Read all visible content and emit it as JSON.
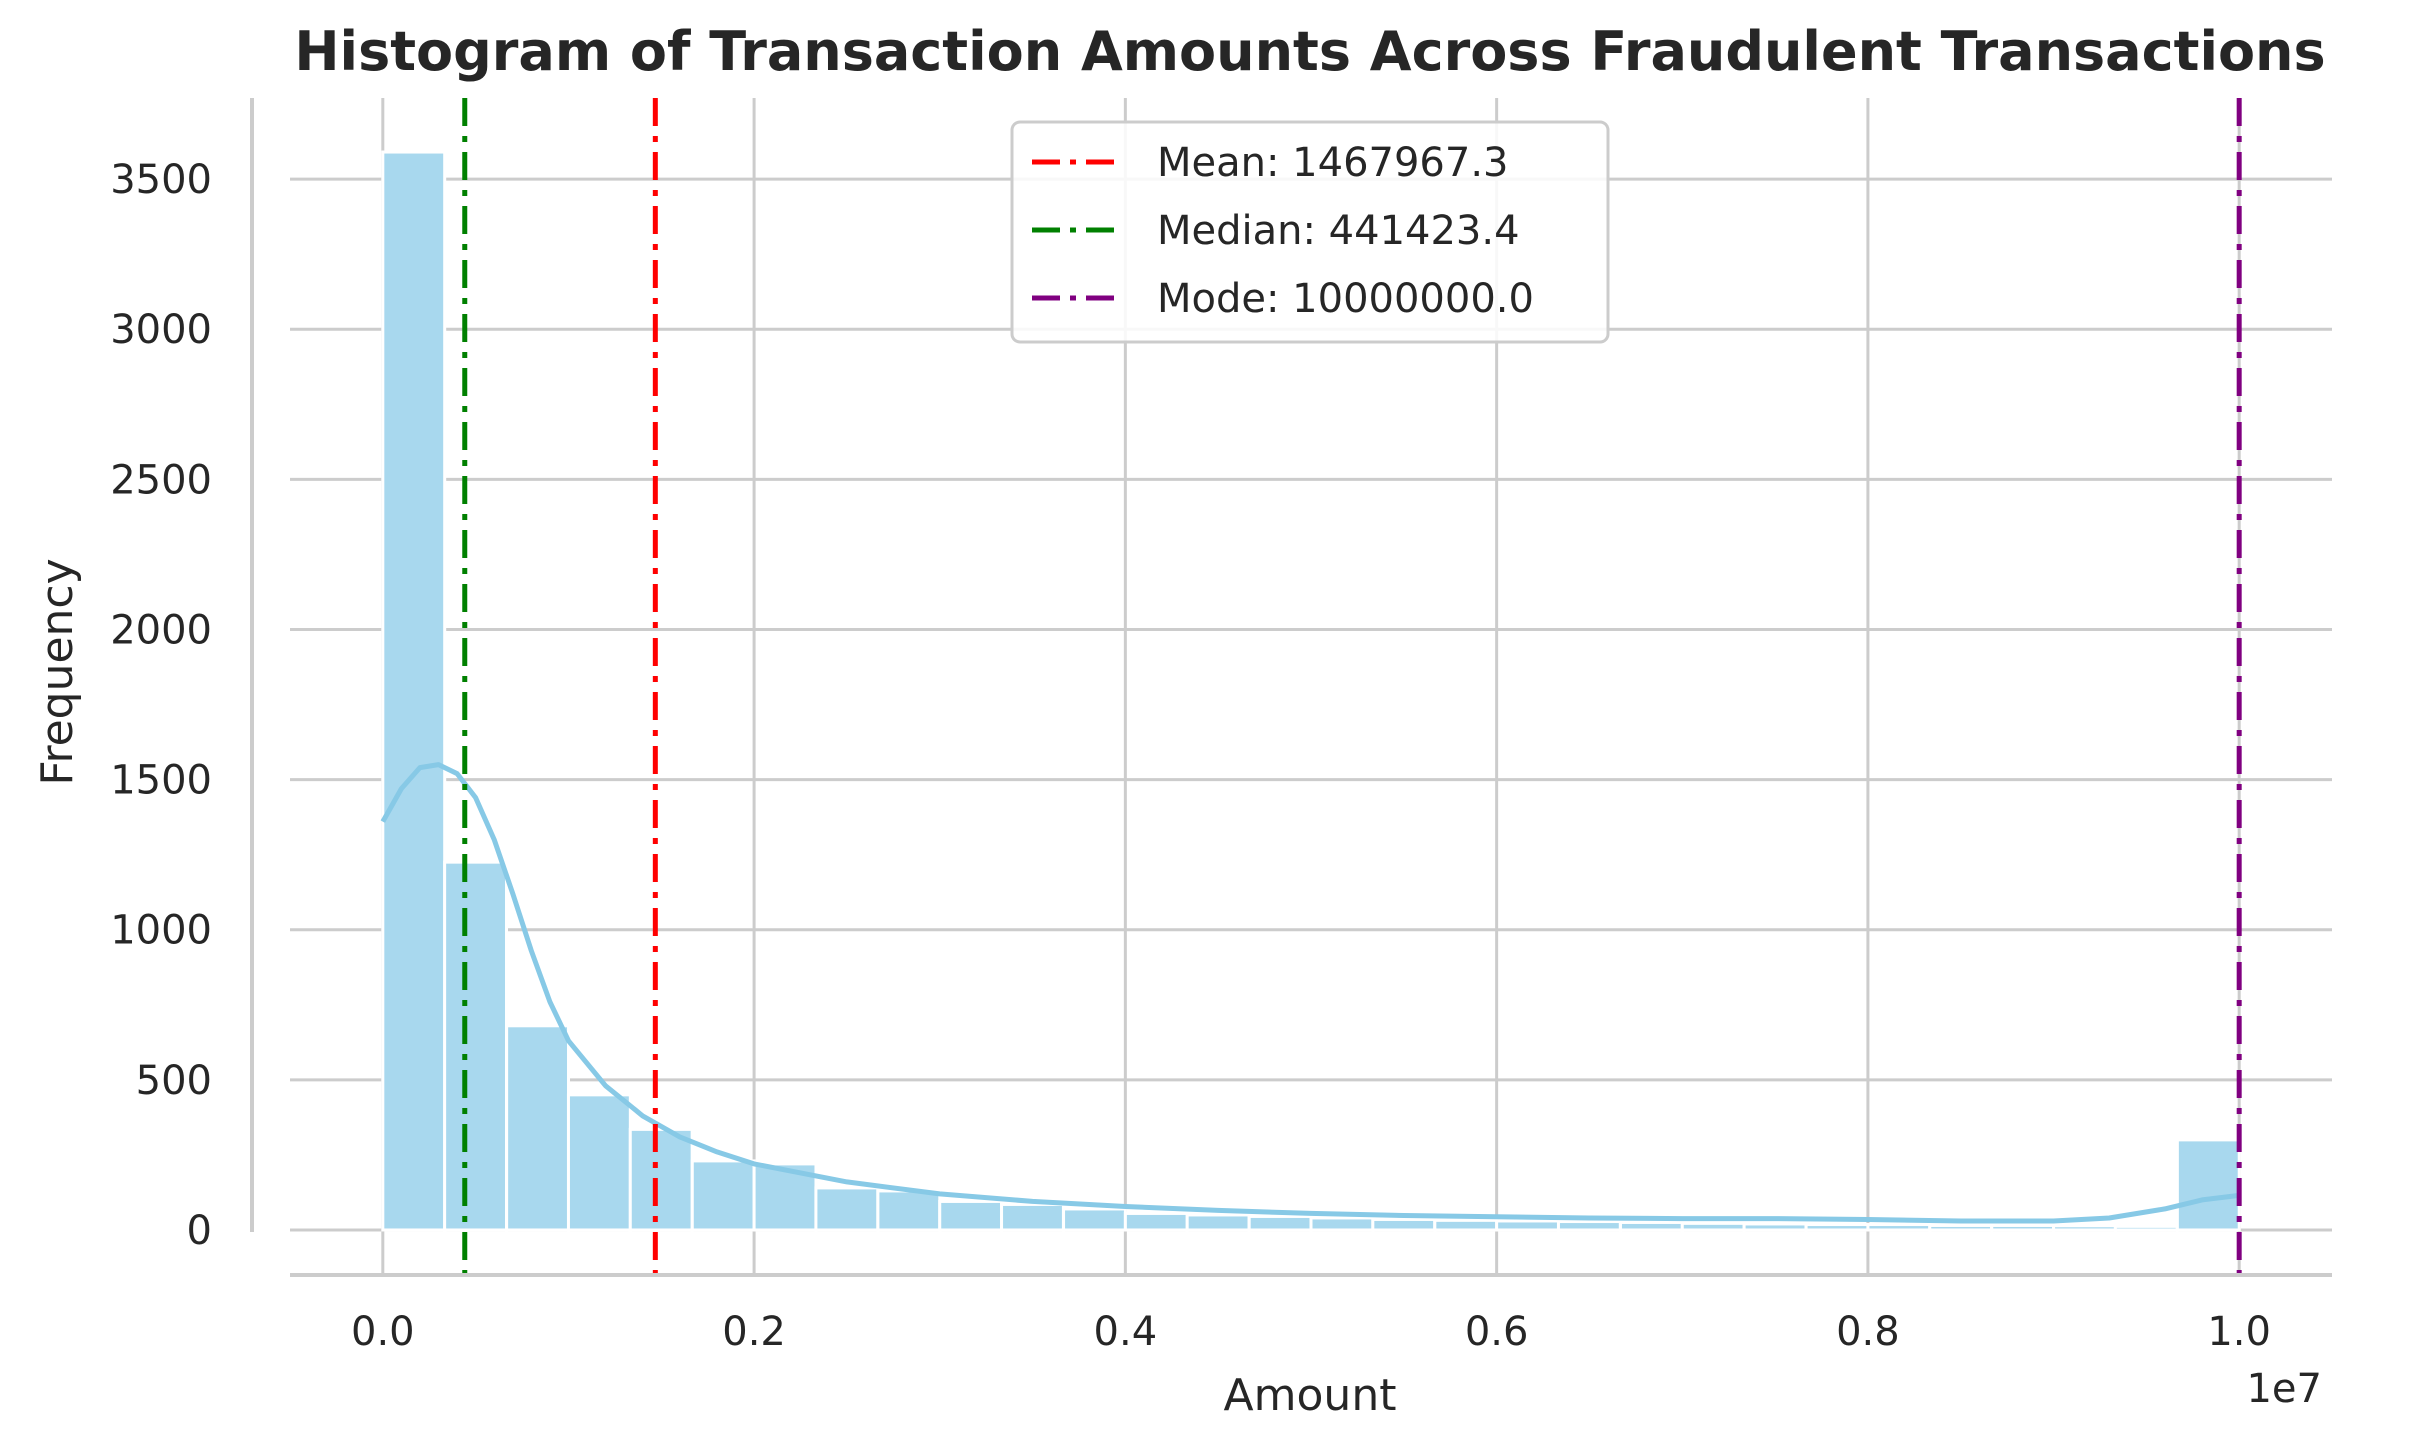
{
  "chart_data": {
    "type": "bar",
    "title": "Histogram of Transaction Amounts Across Fraudulent Transactions",
    "xlabel": "Amount",
    "ylabel": "Frequency",
    "x_offset_label": "1e7",
    "xlim": [
      -0.05,
      1.05
    ],
    "ylim": [
      -150,
      3770
    ],
    "x_ticks": [
      0.0,
      0.2,
      0.4,
      0.6,
      0.8,
      1.0
    ],
    "x_tick_labels": [
      "0.0",
      "0.2",
      "0.4",
      "0.6",
      "0.8",
      "1.0"
    ],
    "y_ticks": [
      0,
      500,
      1000,
      1500,
      2000,
      2500,
      3000,
      3500
    ],
    "y_tick_labels": [
      "0",
      "500",
      "1000",
      "1500",
      "2000",
      "2500",
      "3000",
      "3500"
    ],
    "grid": true,
    "bin_width": 0.03333,
    "bins_start": [
      0.0,
      0.0333,
      0.0667,
      0.1,
      0.1333,
      0.1667,
      0.2,
      0.2333,
      0.2667,
      0.3,
      0.3333,
      0.3667,
      0.4,
      0.4333,
      0.4667,
      0.5,
      0.5333,
      0.5667,
      0.6,
      0.6333,
      0.6667,
      0.7,
      0.7333,
      0.7667,
      0.8,
      0.8333,
      0.8667,
      0.9,
      0.9333,
      0.9667
    ],
    "values": [
      3590,
      1225,
      680,
      450,
      335,
      230,
      220,
      140,
      130,
      95,
      85,
      70,
      55,
      50,
      45,
      40,
      35,
      32,
      30,
      28,
      25,
      22,
      20,
      18,
      18,
      15,
      15,
      14,
      12,
      300
    ],
    "bar_color": "#a8d8ee",
    "kde": {
      "color": "#87c9e6",
      "x": [
        0.0,
        0.01,
        0.02,
        0.03,
        0.04,
        0.05,
        0.06,
        0.07,
        0.08,
        0.09,
        0.1,
        0.12,
        0.14,
        0.16,
        0.18,
        0.2,
        0.25,
        0.3,
        0.35,
        0.4,
        0.45,
        0.5,
        0.55,
        0.6,
        0.65,
        0.7,
        0.75,
        0.8,
        0.85,
        0.9,
        0.93,
        0.96,
        0.98,
        1.0
      ],
      "y": [
        1360,
        1470,
        1540,
        1550,
        1520,
        1440,
        1300,
        1120,
        930,
        760,
        630,
        480,
        380,
        310,
        260,
        220,
        160,
        120,
        95,
        78,
        65,
        55,
        48,
        44,
        40,
        38,
        38,
        35,
        30,
        30,
        40,
        70,
        100,
        115
      ]
    },
    "vlines": [
      {
        "name": "Mean: 1467967.3",
        "x": 0.1467967,
        "color": "#ff0000"
      },
      {
        "name": "Median: 441423.4",
        "x": 0.0441423,
        "color": "#008000"
      },
      {
        "name": "Mode: 10000000.0",
        "x": 1.0,
        "color": "#800080"
      }
    ],
    "legend_placement": "top-center"
  }
}
